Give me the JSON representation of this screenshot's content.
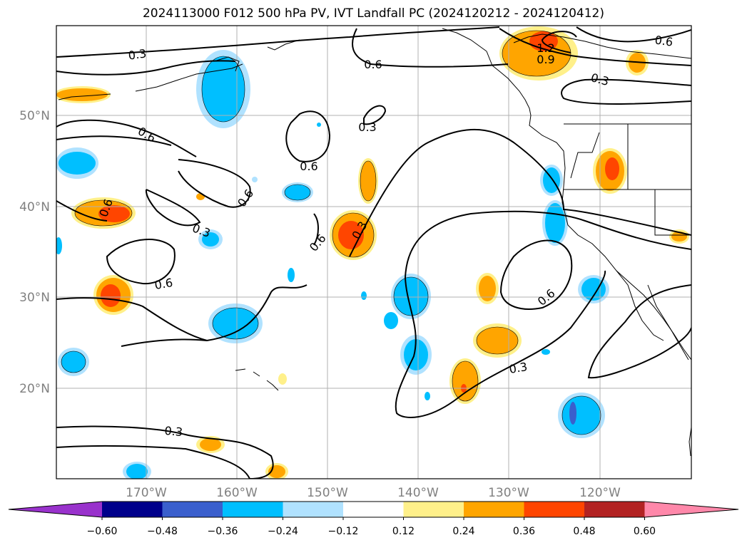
{
  "title": "2024113000 F012 500 hPa PV, IVT Landfall PC (2024120212 - 2024120412)",
  "lat_labels": [
    "50°N",
    "40°N",
    "30°N",
    "20°N"
  ],
  "lon_labels": [
    "170°W",
    "160°W",
    "150°W",
    "140°W",
    "130°W",
    "120°W"
  ],
  "colorbar": {
    "labels": [
      "−0.60",
      "−0.48",
      "−0.36",
      "−0.24",
      "−0.12",
      "0.12",
      "0.24",
      "0.36",
      "0.48",
      "0.60"
    ],
    "colors": [
      "#9932cc",
      "#00008b",
      "#3a5fcd",
      "#00bfff",
      "#b0e2ff",
      "#ffffff",
      "#fff08a",
      "#ffa500",
      "#ff4500",
      "#b22222",
      "#ff88aa"
    ]
  },
  "contour_labels": [
    "0.3",
    "0.6",
    "1.2",
    "0.9",
    "0.6",
    "0.3",
    "0.6",
    "0.3",
    "0.6",
    "0.6",
    "0.3",
    "0.6",
    "0.3",
    "0.6",
    "0.6",
    "0.6",
    "0.3",
    "0.3"
  ]
}
